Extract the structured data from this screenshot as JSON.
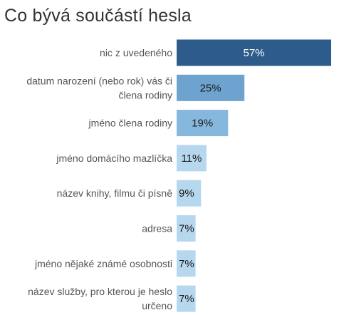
{
  "title": "Co bývá součástí hesla",
  "chart_data": {
    "type": "bar",
    "orientation": "horizontal",
    "title": "Co bývá součástí hesla",
    "xlabel": "",
    "ylabel": "",
    "xlim": [
      0,
      57
    ],
    "grid": false,
    "categories": [
      [
        "nic z uvedeného"
      ],
      [
        "datum narození (nebo rok) vás či",
        "člena rodiny"
      ],
      [
        "jméno člena rodiny"
      ],
      [
        "jméno domácího mazlíčka"
      ],
      [
        "název knihy, filmu či písně"
      ],
      [
        "adresa"
      ],
      [
        "jméno nějaké známé osobnosti"
      ],
      [
        "název služby, pro kterou je heslo",
        "určeno"
      ]
    ],
    "values": [
      57,
      25,
      19,
      11,
      9,
      7,
      7,
      7
    ],
    "value_labels": [
      "57%",
      "25%",
      "19%",
      "11%",
      "9%",
      "7%",
      "7%",
      "7%"
    ],
    "colors": [
      "#2c5b8c",
      "#6fa3cf",
      "#86b7dc",
      "#b6d8ef",
      "#b6d8ef",
      "#b6d8ef",
      "#b6d8ef",
      "#b6d8ef"
    ],
    "label_colors": [
      "#ffffff",
      "#1a1a1a",
      "#1a1a1a",
      "#1a1a1a",
      "#1a1a1a",
      "#1a1a1a",
      "#1a1a1a",
      "#1a1a1a"
    ]
  }
}
